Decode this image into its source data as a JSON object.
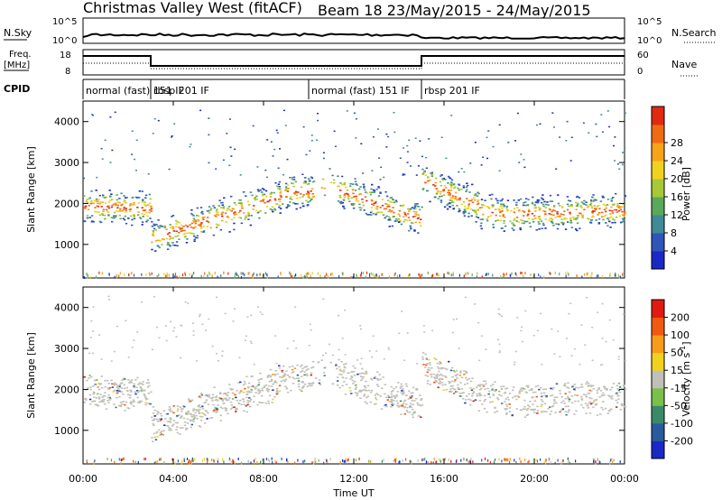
{
  "header": {
    "title_left": "Christmas Valley West (fitACF)",
    "title_right": "Beam 18 23/May/2015 - 24/May/2015"
  },
  "strips": {
    "nsky_label": "N.Sky",
    "nsky_ticks": [
      "10^5",
      "10^0"
    ],
    "nsearch_label": "N.Search",
    "nsearch_ticks": [
      "10^5",
      "10^0"
    ],
    "freq_label_1": "Freq.",
    "freq_label_2": "[MHz]",
    "freq_ticks": [
      "18",
      "8"
    ],
    "nave_label": "Nave",
    "nave_ticks": [
      "60",
      "0"
    ],
    "cpid_label": "CPID",
    "cpid_segments": [
      {
        "label": "normal (fast) 151 IF",
        "start_hour": 0,
        "end_hour": 3.0
      },
      {
        "label": "rbsp 201 IF",
        "start_hour": 3.0,
        "end_hour": 10.0
      },
      {
        "label": "normal (fast) 151 IF",
        "start_hour": 10.0,
        "end_hour": 15.0
      },
      {
        "label": "rbsp 201 IF",
        "start_hour": 15.0,
        "end_hour": 24.0
      }
    ]
  },
  "chart_data": [
    {
      "type": "heatmap",
      "name": "power",
      "ylabel": "Slant Range [km]",
      "yticks": [
        1000,
        2000,
        3000,
        4000
      ],
      "ylim": [
        180,
        4500
      ],
      "xlim": [
        0,
        24
      ],
      "colorbar_label": "Power [dB]",
      "colorbar_ticks": [
        "4",
        "8",
        "12",
        "16",
        "20",
        "24",
        "28"
      ],
      "colorbar_colors": [
        "#1a28c8",
        "#2f55b8",
        "#3f8a96",
        "#5aa85a",
        "#a8c837",
        "#f0d21e",
        "#f8a21a",
        "#f06a14",
        "#e02a10"
      ]
    },
    {
      "type": "heatmap",
      "name": "velocity",
      "ylabel": "Slant Range [km]",
      "yticks": [
        1000,
        2000,
        3000,
        4000
      ],
      "ylim": [
        180,
        4500
      ],
      "xlim": [
        0,
        24
      ],
      "xticks": [
        "00:00",
        "04:00",
        "08:00",
        "12:00",
        "16:00",
        "20:00",
        "00:00"
      ],
      "xlabel": "Time UT",
      "colorbar_label": "Velocity [m s",
      "colorbar_label_sup": "-1",
      "colorbar_ticks": [
        "200",
        "100",
        "50",
        "15",
        "-15",
        "-50",
        "-100",
        "-200"
      ],
      "colorbar_colors": [
        "#1a28c8",
        "#2a5a9e",
        "#3a8a6a",
        "#7ac04a",
        "#c0c0b8",
        "#f0d21e",
        "#f89a1a",
        "#f05a10",
        "#e01a10"
      ]
    }
  ]
}
